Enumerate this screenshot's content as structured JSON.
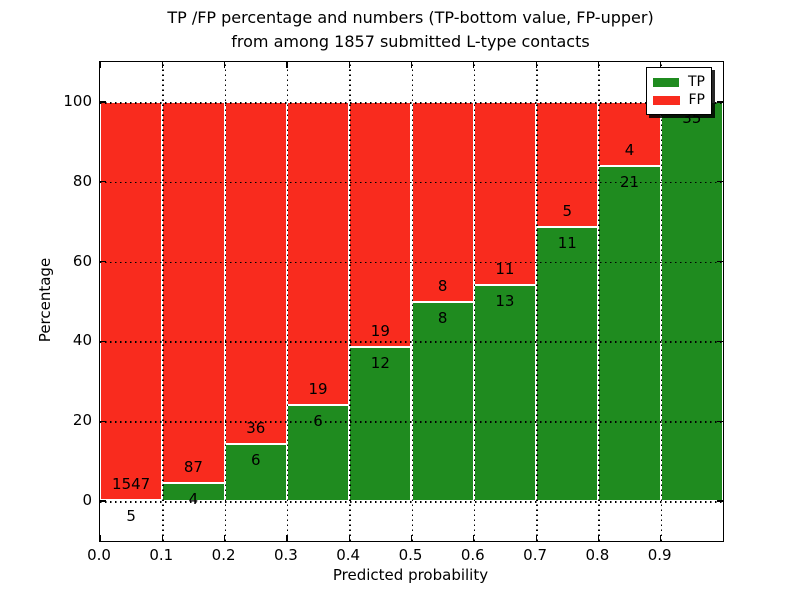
{
  "title": {
    "line1": "TP /FP percentage and numbers (TP-bottom value, FP-upper)",
    "line2": "from among 1857 submitted L-type contacts"
  },
  "axes": {
    "xlabel": "Predicted probability",
    "ylabel": "Percentage",
    "ytick_labels": [
      "0",
      "20",
      "40",
      "60",
      "80",
      "100"
    ],
    "ytick_values": [
      0,
      20,
      40,
      60,
      80,
      100
    ],
    "xtick_labels": [
      "0.0",
      "0.1",
      "0.2",
      "0.3",
      "0.4",
      "0.5",
      "0.6",
      "0.7",
      "0.8",
      "0.9"
    ],
    "xtick_values": [
      0,
      0.1,
      0.2,
      0.3,
      0.4,
      0.5,
      0.6,
      0.7,
      0.8,
      0.9
    ],
    "ylim": [
      -10,
      110
    ],
    "xlim": [
      0,
      1
    ]
  },
  "legend": {
    "items": [
      {
        "label": "TP",
        "color": "#1f8b1f"
      },
      {
        "label": "FP",
        "color": "#f92b1e"
      }
    ]
  },
  "chart_data": {
    "type": "bar",
    "stacked": true,
    "normalized": "percent-per-bin",
    "title": "TP /FP percentage and numbers (TP-bottom value, FP-upper) from among 1857 submitted L-type contacts",
    "xlabel": "Predicted probability",
    "ylabel": "Percentage",
    "xlim": [
      0,
      1
    ],
    "ylim": [
      -10,
      110
    ],
    "grid": "dotted",
    "legend_position": "upper right",
    "total_contacts": 1857,
    "bin_width": 0.1,
    "bin_starts": [
      0.0,
      0.1,
      0.2,
      0.3,
      0.4,
      0.5,
      0.6,
      0.7,
      0.8,
      0.9
    ],
    "series": [
      {
        "name": "TP",
        "color": "#1f8b1f",
        "counts": [
          5,
          4,
          6,
          6,
          12,
          8,
          13,
          11,
          21,
          35
        ]
      },
      {
        "name": "FP",
        "color": "#f92b1e",
        "counts": [
          1547,
          87,
          36,
          19,
          19,
          8,
          11,
          5,
          4,
          0
        ]
      }
    ],
    "tp_percent": [
      0.32,
      4.4,
      14.29,
      24.0,
      38.71,
      50.0,
      54.17,
      68.75,
      84.0,
      100.0
    ],
    "bar_labels": {
      "fp": [
        "1547",
        "87",
        "36",
        "19",
        "19",
        "8",
        "11",
        "5",
        "4",
        ""
      ],
      "tp": [
        "5",
        "4",
        "6",
        "6",
        "12",
        "8",
        "13",
        "11",
        "21",
        "35"
      ]
    }
  }
}
